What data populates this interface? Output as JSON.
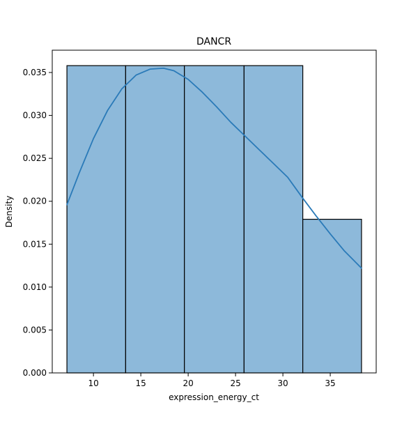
{
  "chart_data": {
    "type": "bar",
    "title": "DANCR",
    "xlabel": "expression_energy_ct",
    "ylabel": "Density",
    "xlim": [
      5.65,
      39.85
    ],
    "ylim": [
      0,
      0.0376
    ],
    "bins": [
      {
        "x0": 7.2,
        "x1": 13.4,
        "density": 0.0358
      },
      {
        "x0": 13.4,
        "x1": 19.6,
        "density": 0.0358
      },
      {
        "x0": 19.6,
        "x1": 25.9,
        "density": 0.0358
      },
      {
        "x0": 25.9,
        "x1": 32.1,
        "density": 0.0358
      },
      {
        "x0": 32.1,
        "x1": 38.3,
        "density": 0.0179
      }
    ],
    "kde": {
      "x": [
        7.2,
        8.5,
        10,
        11.5,
        13,
        14.5,
        16,
        17.4,
        18.5,
        20,
        21.5,
        23,
        24.5,
        26,
        27.5,
        29,
        30.5,
        32,
        33.5,
        35,
        36.5,
        38.3
      ],
      "y": [
        0.0196,
        0.0233,
        0.0273,
        0.0306,
        0.0331,
        0.0347,
        0.0354,
        0.0355,
        0.0352,
        0.0342,
        0.0327,
        0.031,
        0.0292,
        0.0276,
        0.026,
        0.0244,
        0.0228,
        0.0205,
        0.0183,
        0.0162,
        0.0142,
        0.0122
      ]
    },
    "xticks": [
      10,
      15,
      20,
      25,
      30,
      35
    ],
    "xtick_labels": [
      "10",
      "15",
      "20",
      "25",
      "30",
      "35"
    ],
    "yticks": [
      0,
      0.005,
      0.01,
      0.015,
      0.02,
      0.025,
      0.03,
      0.035
    ],
    "ytick_labels": [
      "0.000",
      "0.005",
      "0.010",
      "0.015",
      "0.020",
      "0.025",
      "0.030",
      "0.035"
    ],
    "colors": {
      "bar_fill": "#8db9da",
      "bar_edge": "#000000",
      "line": "#2a7ab8"
    },
    "grid": false,
    "legend": "none"
  }
}
